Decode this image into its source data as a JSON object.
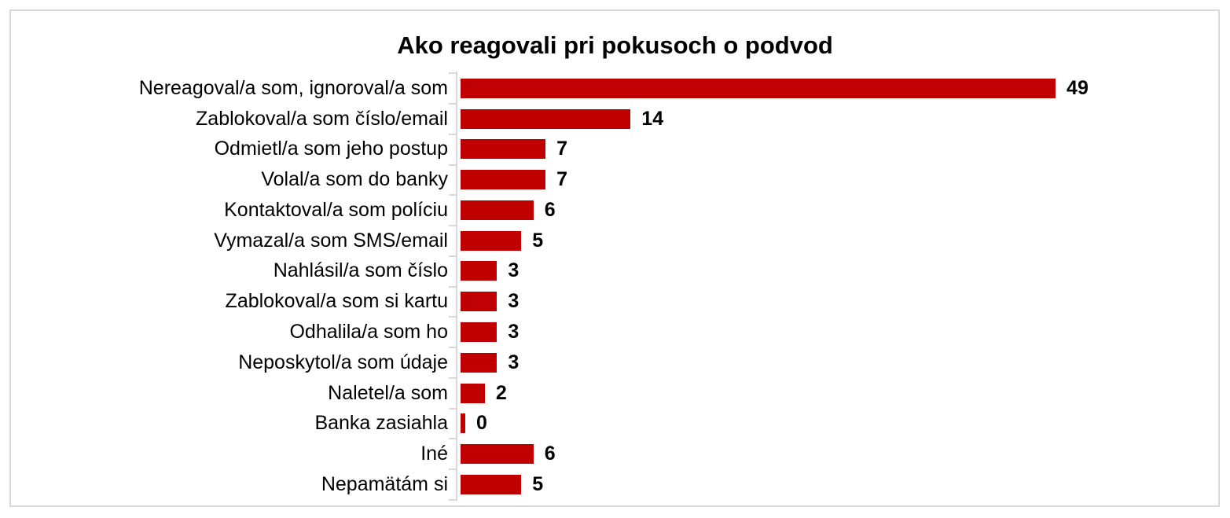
{
  "chart_data": {
    "type": "bar",
    "orientation": "horizontal",
    "title": "Ako reagovali pri pokusoch o podvod",
    "categories": [
      "Nereagoval/a som, ignoroval/a som",
      "Zablokoval/a som číslo/email",
      "Odmietl/a som jeho postup",
      "Volal/a som do banky",
      "Kontaktoval/a som políciu",
      "Vymazal/a som SMS/email",
      "Nahlásil/a som číslo",
      "Zablokoval/a som si kartu",
      "Odhalila/a som ho",
      "Neposkytol/a som údaje",
      "Naletel/a som",
      "Banka zasiahla",
      "Iné",
      "Nepamätám si"
    ],
    "values": [
      49,
      14,
      7,
      7,
      6,
      5,
      3,
      3,
      3,
      3,
      2,
      0,
      6,
      5
    ],
    "data_labels": [
      49,
      14,
      7,
      7,
      6,
      5,
      3,
      3,
      3,
      3,
      2,
      0,
      6,
      5
    ],
    "xlabel": "",
    "ylabel": "",
    "xlim": [
      0,
      62
    ],
    "grid": false,
    "legend": false,
    "bar_color": "#c00000",
    "axis_color": "#d9d9d9",
    "text_color": "#000000"
  }
}
